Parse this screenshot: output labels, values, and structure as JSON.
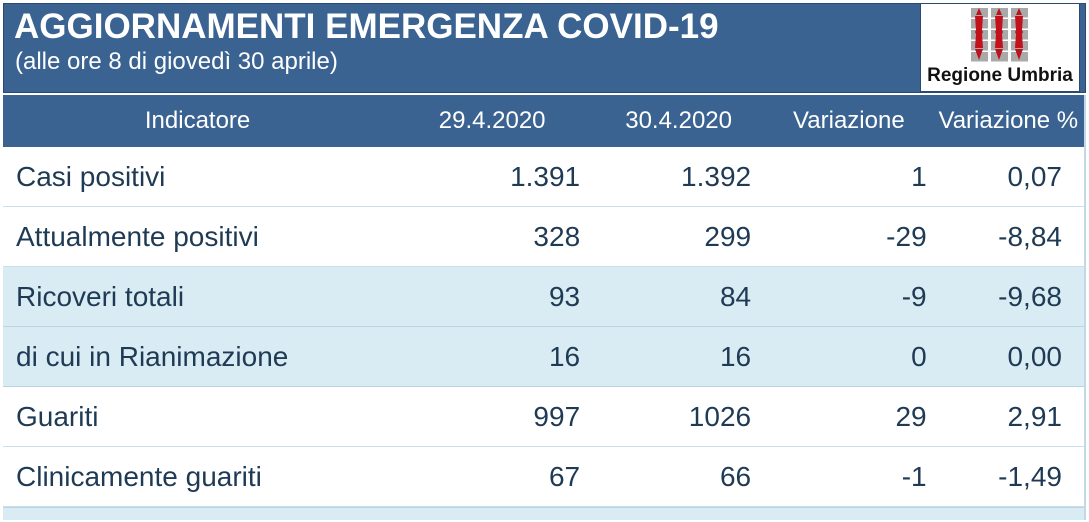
{
  "banner": {
    "title": "AGGIORNAMENTI EMERGENZA COVID-19",
    "subtitle": "(alle ore 8 di giovedì 30 aprile)"
  },
  "logo": {
    "caption": "Regione Umbria"
  },
  "colors": {
    "banner_bg": "#3a6391",
    "banner_border": "#2a4a72",
    "header_bg": "#3a6391",
    "stripe_bg": "#d9ecf4",
    "row_text": "#1f3a54",
    "logo_red": "#c0111c",
    "logo_grey": "#a9a9a9"
  },
  "chart_data": {
    "type": "table",
    "title": "AGGIORNAMENTI EMERGENZA COVID-19",
    "subtitle": "(alle ore 8 di giovedì 30 aprile)",
    "columns": [
      "Indicatore",
      "29.4.2020",
      "30.4.2020",
      "Variazione",
      "Variazione %"
    ],
    "rows": [
      {
        "label": "Casi positivi",
        "v_29_4": "1.391",
        "v_30_4": "1.392",
        "variazione": "1",
        "variazione_pct": "0,07",
        "shaded": false
      },
      {
        "label": "Attualmente positivi",
        "v_29_4": "328",
        "v_30_4": "299",
        "variazione": "-29",
        "variazione_pct": "-8,84",
        "shaded": false
      },
      {
        "label": "Ricoveri totali",
        "v_29_4": "93",
        "v_30_4": "84",
        "variazione": "-9",
        "variazione_pct": "-9,68",
        "shaded": true
      },
      {
        "label": "di cui in Rianimazione",
        "v_29_4": "16",
        "v_30_4": "16",
        "variazione": "0",
        "variazione_pct": "0,00",
        "shaded": true
      },
      {
        "label": "Guariti",
        "v_29_4": "997",
        "v_30_4": "1026",
        "variazione": "29",
        "variazione_pct": "2,91",
        "shaded": false
      },
      {
        "label": "Clinicamente guariti",
        "v_29_4": "67",
        "v_30_4": "66",
        "variazione": "-1",
        "variazione_pct": "-1,49",
        "shaded": false
      }
    ]
  }
}
